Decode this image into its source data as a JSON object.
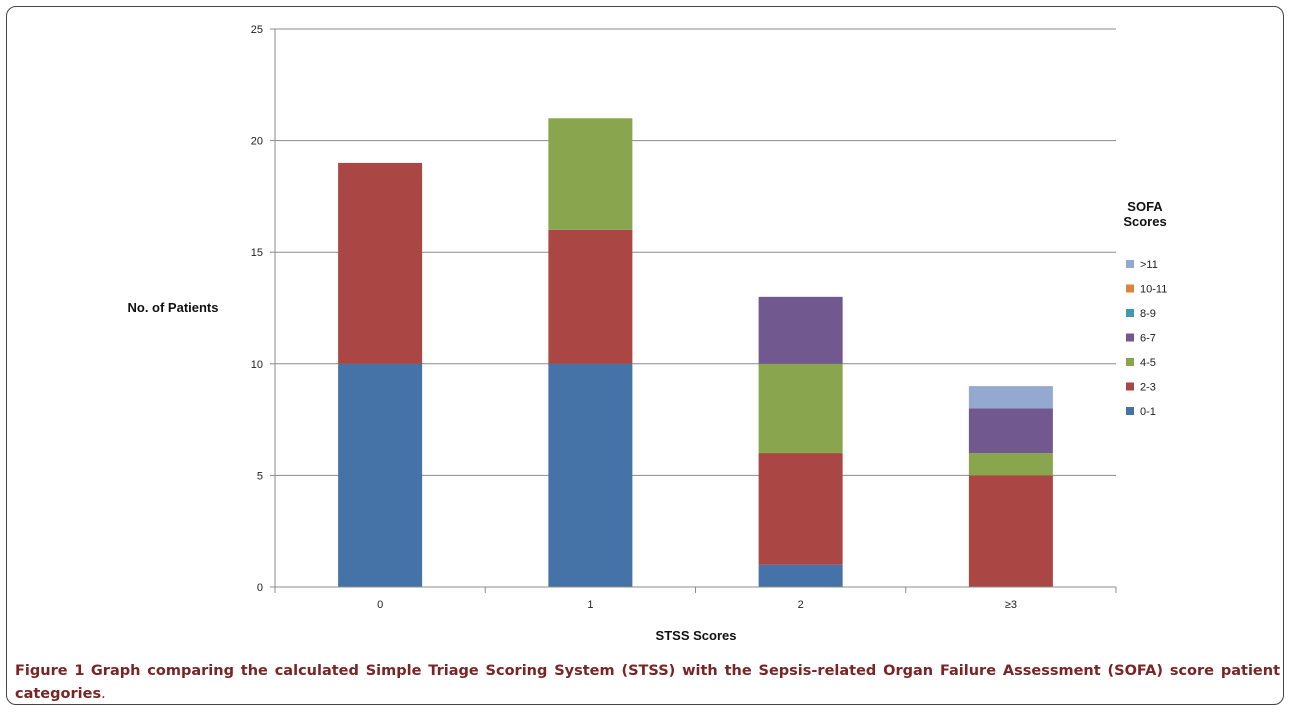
{
  "chart_data": {
    "type": "bar",
    "stacked": true,
    "categories": [
      "0",
      "1",
      "2",
      "≥3"
    ],
    "series": [
      {
        "name": "0-1",
        "color": "#4572A7",
        "values": [
          10,
          10,
          1,
          0
        ]
      },
      {
        "name": "2-3",
        "color": "#AA4643",
        "values": [
          9,
          6,
          5,
          5
        ]
      },
      {
        "name": "4-5",
        "color": "#89A54E",
        "values": [
          0,
          5,
          4,
          1
        ]
      },
      {
        "name": "6-7",
        "color": "#71588F",
        "values": [
          0,
          0,
          3,
          2
        ]
      },
      {
        "name": "8-9",
        "color": "#4198AF",
        "values": [
          0,
          0,
          0,
          0
        ]
      },
      {
        "name": "10-11",
        "color": "#DB843D",
        "values": [
          0,
          0,
          0,
          0
        ]
      },
      {
        "name": ">11",
        "color": "#93A9CF",
        "values": [
          0,
          0,
          0,
          1
        ]
      }
    ],
    "xlabel": "STSS Scores",
    "ylabel": "No. of Patients",
    "ylim": [
      0,
      25
    ],
    "yticks": [
      0,
      5,
      10,
      15,
      20,
      25
    ],
    "grid": true,
    "legend_title_line1": "SOFA",
    "legend_title_line2": "Scores",
    "legend_position": "right"
  },
  "caption": {
    "label": "Figure 1",
    "text": "Graph comparing the calculated Simple Triage Scoring System (STSS) with the Sepsis-related Organ Failure Assessment (SOFA) score patient categories",
    "period": "."
  }
}
